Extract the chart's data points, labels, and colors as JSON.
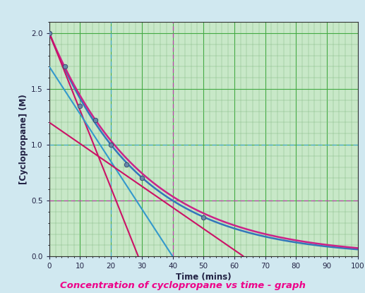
{
  "title_display": "Concentration of cyclopropane vs time - graph",
  "xlabel": "Time (mins)",
  "ylabel": "[Cyclopropane] (M)",
  "xlim": [
    0,
    100
  ],
  "ylim": [
    0.0,
    2.1
  ],
  "yticks": [
    0.0,
    0.5,
    1.0,
    1.5,
    2.0
  ],
  "xticks": [
    0,
    10,
    20,
    30,
    40,
    50,
    60,
    70,
    80,
    90,
    100
  ],
  "background_color": "#c8e8c8",
  "outer_bg": "#d0e8f0",
  "grid_minor_color": "#88bb88",
  "grid_major_color": "#44aa44",
  "blue_curve_k": 0.055,
  "pink_curve_k": 0.03,
  "C0": 2.0,
  "curve_blue_color": "#3377bb",
  "curve_pink_color": "#cc2288",
  "tangent_red_color": "#cc1166",
  "tangent_blue_color": "#3399cc",
  "tangent_pink_color": "#cc2288",
  "dashed_h_color": "#bb44aa",
  "dashed_v_color": "#44aacc",
  "point_color": "#6688aa",
  "point_edge_color": "#334466",
  "data_points_x": [
    0,
    5,
    10,
    15,
    20,
    25,
    30,
    50
  ],
  "data_points_y": [
    2.0,
    1.7,
    1.35,
    1.22,
    1.0,
    0.82,
    0.7,
    0.35
  ],
  "hline1_y": 0.5,
  "hline2_y": 1.0,
  "vline1_x": 20,
  "vline2_x": 40,
  "tang_red_t0": 0,
  "tang_red_x_end": 25,
  "tang_blue_t0": 20,
  "tang_blue_x_start": 0,
  "tang_blue_x_end": 65,
  "tang_pink_y_intercept": 1.2,
  "tang_pink_x_end": 63
}
